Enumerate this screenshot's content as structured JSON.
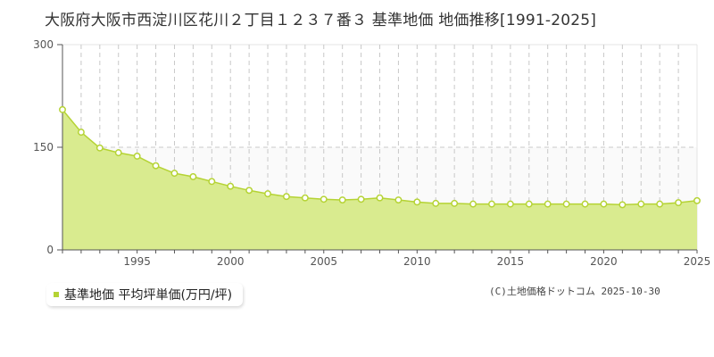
{
  "header": {
    "title": "大阪府大阪市西淀川区花川２丁目１２３７番３ 基準地価 地価推移[1991-2025]"
  },
  "legend": {
    "label": "基準地価 平均坪単価(万円/坪)",
    "color": "#b5d334"
  },
  "footer": {
    "copyright": "(C)土地価格ドットコム 2025-10-30"
  },
  "colors": {
    "fill": "#d9eb8f",
    "line": "#b5d334",
    "marker_fill": "#ffffff",
    "grid": "#c8c8c8",
    "axis": "#555555",
    "upper_band": "#fafafa"
  },
  "chart_data": {
    "type": "area",
    "title": "大阪府大阪市西淀川区花川２丁目１２３７番３ 基準地価 地価推移[1991-2025]",
    "xlabel": "",
    "ylabel": "",
    "ylim": [
      0,
      300
    ],
    "xlim": [
      1991,
      2025
    ],
    "yticks": [
      0,
      150,
      300
    ],
    "xticks": [
      1995,
      2000,
      2005,
      2010,
      2015,
      2020,
      2025
    ],
    "grid": true,
    "legend_position": "bottom-left",
    "series": [
      {
        "name": "基準地価 平均坪単価(万円/坪)",
        "x": [
          1991,
          1992,
          1993,
          1994,
          1995,
          1996,
          1997,
          1998,
          1999,
          2000,
          2001,
          2002,
          2003,
          2004,
          2005,
          2006,
          2007,
          2008,
          2009,
          2010,
          2011,
          2012,
          2013,
          2014,
          2015,
          2016,
          2017,
          2018,
          2019,
          2020,
          2021,
          2022,
          2023,
          2024,
          2025
        ],
        "values": [
          205,
          172,
          149,
          142,
          137,
          123,
          112,
          107,
          100,
          93,
          87,
          82,
          78,
          76,
          74,
          73,
          74,
          76,
          73,
          70,
          68,
          68,
          67,
          67,
          67,
          67,
          67,
          67,
          67,
          67,
          66,
          67,
          67,
          69,
          72
        ]
      }
    ]
  }
}
